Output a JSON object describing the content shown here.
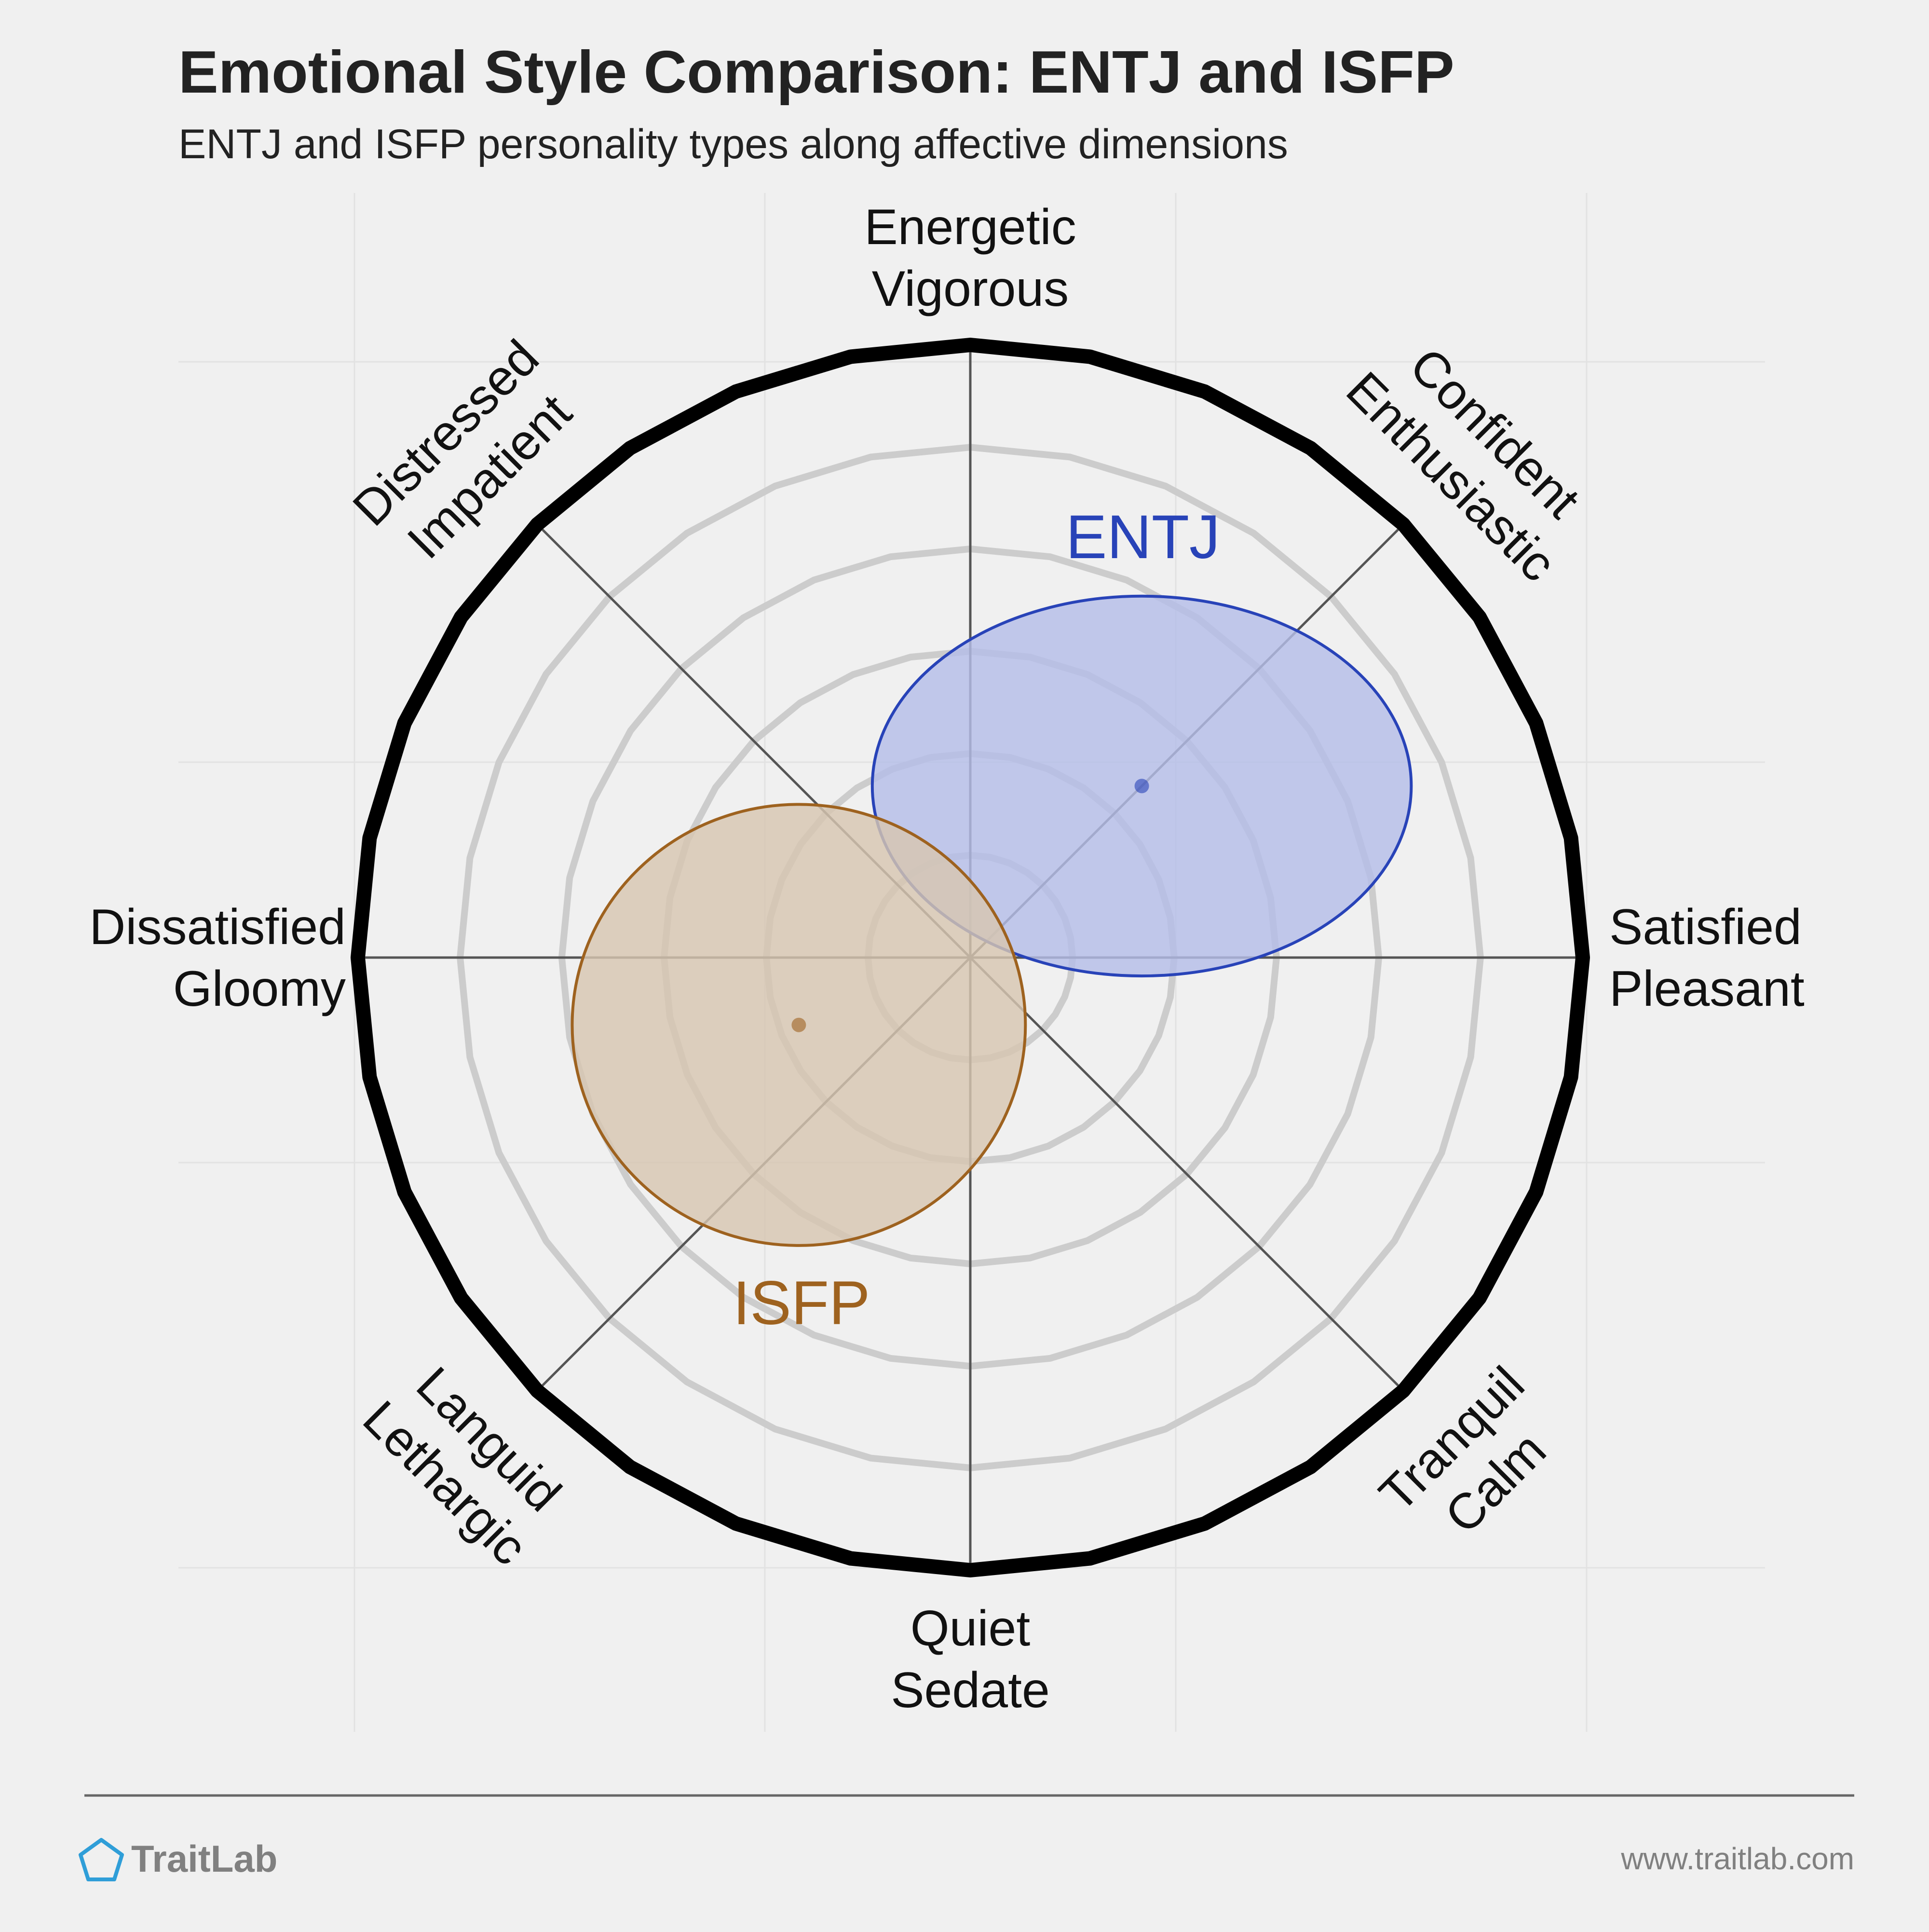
{
  "header": {
    "title": "Emotional Style Comparison: ENTJ and ISFP",
    "subtitle": "ENTJ and ISFP personality types along affective dimensions"
  },
  "footer": {
    "brand": "TraitLab",
    "url": "www.traitlab.com",
    "logo_icon": "pentagon-icon"
  },
  "colors": {
    "background": "#f0f0f0",
    "entj": "#2843b8",
    "isfp": "#9e621f"
  },
  "chart_data": {
    "type": "scatter",
    "title": "Emotional Style Comparison: ENTJ and ISFP",
    "subtitle": "ENTJ and ISFP personality types along affective dimensions",
    "x_axis": {
      "negative": [
        "Dissatisfied",
        "Gloomy"
      ],
      "positive": [
        "Satisfied",
        "Pleasant"
      ]
    },
    "y_axis": {
      "positive": [
        "Energetic",
        "Vigorous"
      ],
      "negative": [
        "Quiet",
        "Sedate"
      ]
    },
    "axis_labels": [
      {
        "angle": 90,
        "lines": [
          "Energetic",
          "Vigorous"
        ]
      },
      {
        "angle": 45,
        "lines": [
          "Confident",
          "Enthusiastic"
        ]
      },
      {
        "angle": 0,
        "lines": [
          "Satisfied",
          "Pleasant"
        ]
      },
      {
        "angle": -45,
        "lines": [
          "Tranquil",
          "Calm"
        ]
      },
      {
        "angle": -90,
        "lines": [
          "Quiet",
          "Sedate"
        ]
      },
      {
        "angle": -135,
        "lines": [
          "Languid",
          "Lethargic"
        ]
      },
      {
        "angle": 180,
        "lines": [
          "Dissatisfied",
          "Gloomy"
        ]
      },
      {
        "angle": 135,
        "lines": [
          "Distressed",
          "Impatient"
        ]
      }
    ],
    "xlim": [
      -1,
      1
    ],
    "ylim": [
      -1,
      1
    ],
    "grid_rings": [
      0.167,
      0.333,
      0.5,
      0.667,
      0.833
    ],
    "series": [
      {
        "name": "ENTJ",
        "x": 0.28,
        "y": 0.28,
        "spread_x": 0.44,
        "spread_y": 0.31,
        "color": "#2843b8",
        "fill": "#b4bde8"
      },
      {
        "name": "ISFP",
        "x": -0.28,
        "y": -0.11,
        "spread_x": 0.37,
        "spread_y": 0.36,
        "color": "#9e621f",
        "fill": "#d7c6b1"
      }
    ]
  }
}
